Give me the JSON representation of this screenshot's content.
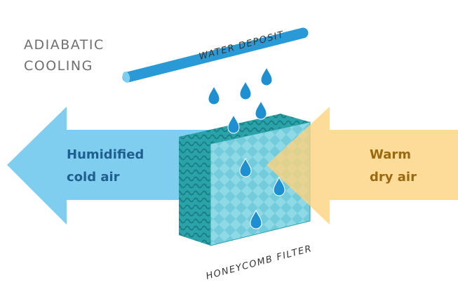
{
  "title": {
    "lines": [
      "ADIABATIC",
      "COOLING"
    ]
  },
  "labels": {
    "water_deposit": "WATER DEPOSIT",
    "filter": "HONEYCOMB FILTER"
  },
  "arrows": {
    "left": {
      "lines": [
        "Humidified",
        "cold air"
      ]
    },
    "right": {
      "lines": [
        "Warm",
        "dry air"
      ]
    }
  }
}
